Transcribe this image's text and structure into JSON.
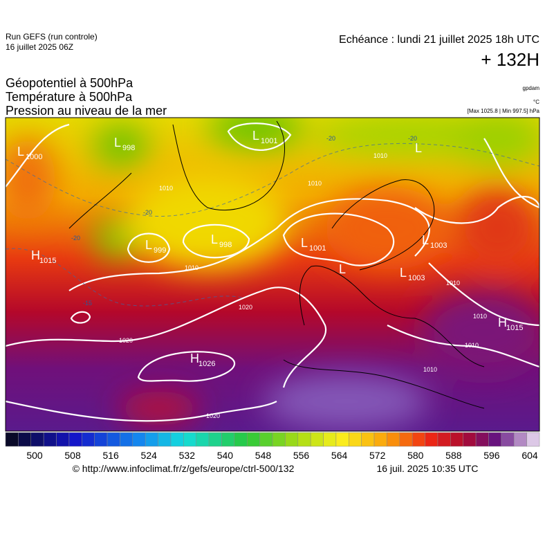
{
  "header": {
    "run": "Run GEFS (run controle)",
    "run_date": "16 juillet 2025 06Z",
    "valid": "Echéance : lundi 21 juillet 2025 18h UTC",
    "lead": "+ 132H",
    "fields": [
      "Géopotentiel à 500hPa",
      "Température à 500hPa",
      "Pression au niveau de la mer"
    ],
    "units": [
      "gpdam",
      "°C",
      "[Max 1025.8 | Min 997.5] hPa"
    ]
  },
  "map": {
    "centers": [
      {
        "letter": "L",
        "value": "1001"
      },
      {
        "letter": "L",
        "value": "998"
      },
      {
        "letter": "L",
        "value": "1000"
      },
      {
        "letter": "H",
        "value": "1015"
      },
      {
        "letter": "L",
        "value": "999"
      },
      {
        "letter": "L",
        "value": "998"
      },
      {
        "letter": "L",
        "value": "1001"
      },
      {
        "letter": "L",
        "value": "1003"
      },
      {
        "letter": "L",
        "value": "1003"
      },
      {
        "letter": "L"
      },
      {
        "letter": "L"
      },
      {
        "letter": "H",
        "value": "1015"
      },
      {
        "letter": "H",
        "value": "1026"
      }
    ],
    "isobar_labels": [
      "1010",
      "1010",
      "1010",
      "1010",
      "1020",
      "1020",
      "1020",
      "1010",
      "1010",
      "1010",
      "1010"
    ],
    "isotherm_labels": [
      "-20",
      "-20",
      "-20",
      "-20",
      "-15"
    ]
  },
  "colorbar": {
    "labels": [
      "500",
      "508",
      "516",
      "524",
      "532",
      "540",
      "548",
      "556",
      "564",
      "572",
      "580",
      "588",
      "596",
      "604"
    ]
  },
  "footer": {
    "source": "© http://www.infoclimat.fr/z/gefs/europe/ctrl-500/132",
    "generated": "16 juil. 2025 10:35 UTC"
  }
}
